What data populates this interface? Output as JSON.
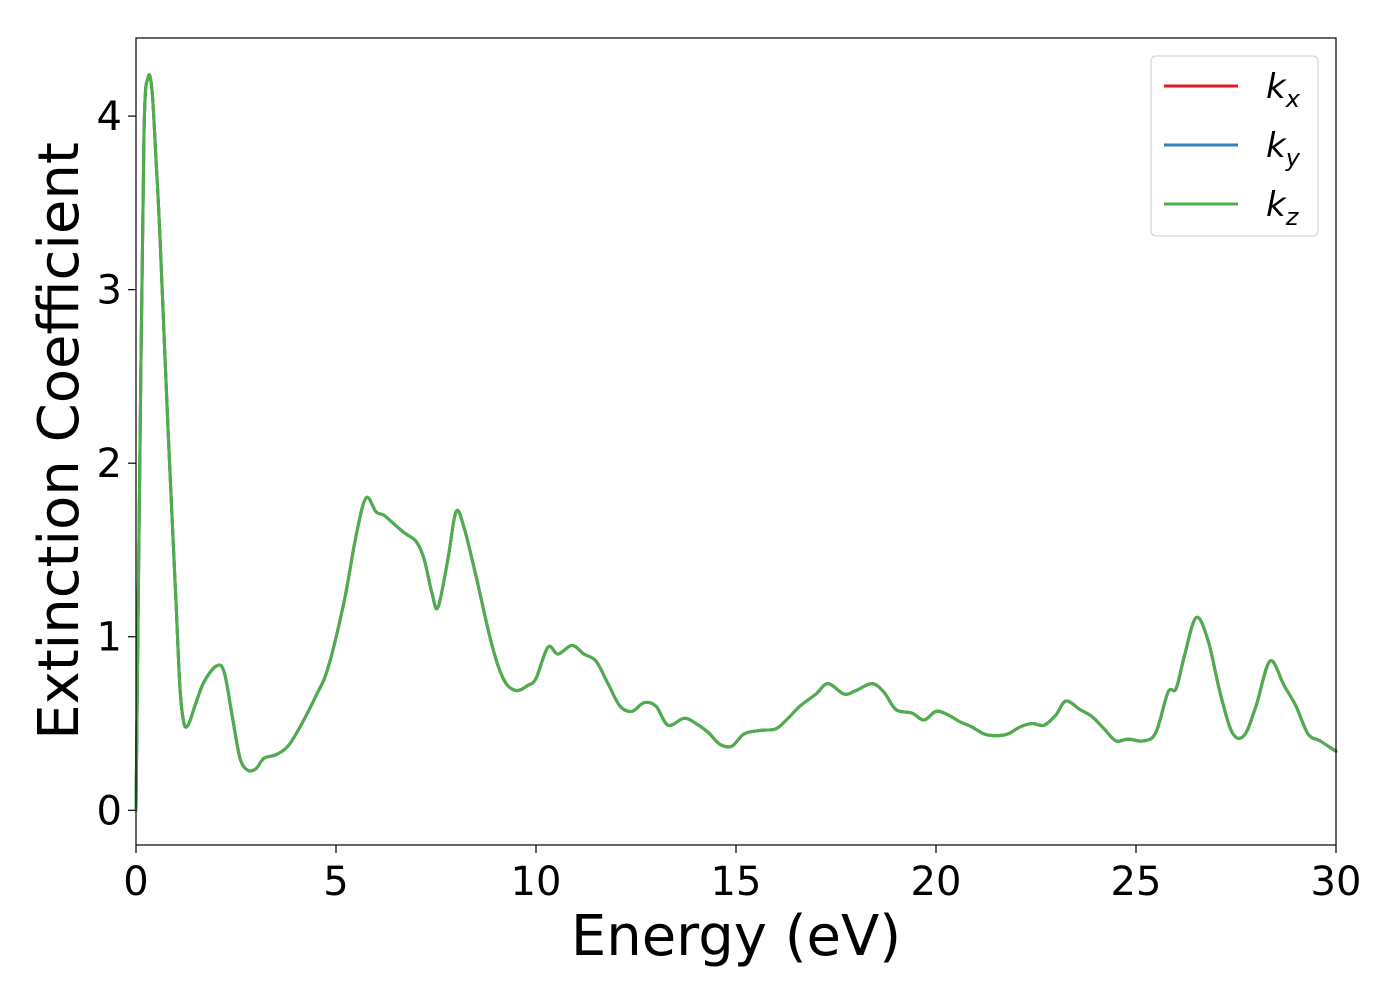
{
  "chart_data": {
    "type": "line",
    "xlabel": "Energy (eV)",
    "ylabel": "Extinction Coefficient",
    "xlim": [
      0,
      30
    ],
    "ylim": [
      -0.2,
      4.45
    ],
    "xticks": [
      0,
      5,
      10,
      15,
      20,
      25,
      30
    ],
    "yticks": [
      0,
      1,
      2,
      3,
      4
    ],
    "grid": false,
    "legend_position": "top-right",
    "colors": {
      "kx": "#e41a1c",
      "ky": "#377eb8",
      "kz": "#4daf4a"
    },
    "series_x": [
      0,
      0.1,
      0.2,
      0.3,
      0.4,
      0.5,
      0.6,
      0.8,
      1.0,
      1.1,
      1.2,
      1.3,
      1.4,
      1.5,
      1.7,
      2.0,
      2.2,
      2.4,
      2.6,
      2.8,
      3.0,
      3.2,
      3.5,
      3.8,
      4.1,
      4.5,
      4.8,
      5.2,
      5.5,
      5.75,
      6.0,
      6.2,
      6.4,
      6.7,
      7.0,
      7.2,
      7.4,
      7.55,
      7.8,
      8.0,
      8.2,
      8.5,
      8.9,
      9.2,
      9.5,
      9.8,
      10.0,
      10.3,
      10.55,
      10.9,
      11.2,
      11.5,
      11.8,
      12.1,
      12.4,
      12.7,
      13.0,
      13.3,
      13.7,
      14.0,
      14.3,
      14.6,
      14.9,
      15.2,
      15.6,
      16.0,
      16.3,
      16.6,
      17.0,
      17.3,
      17.7,
      18.0,
      18.4,
      18.7,
      19.0,
      19.4,
      19.7,
      20.0,
      20.3,
      20.6,
      20.9,
      21.2,
      21.5,
      21.8,
      22.1,
      22.4,
      22.7,
      23.0,
      23.25,
      23.6,
      23.9,
      24.2,
      24.5,
      24.8,
      25.2,
      25.5,
      25.8,
      26.0,
      26.2,
      26.5,
      26.8,
      27.1,
      27.4,
      27.7,
      28.0,
      28.35,
      28.7,
      29.0,
      29.3,
      29.6,
      30.0
    ],
    "series": [
      {
        "name": "k_x",
        "label_main": "k",
        "label_sub": "x",
        "values": [
          0,
          2.1,
          3.9,
          4.22,
          4.15,
          3.75,
          3.3,
          2.2,
          1.2,
          0.7,
          0.5,
          0.49,
          0.55,
          0.62,
          0.74,
          0.83,
          0.8,
          0.55,
          0.3,
          0.23,
          0.24,
          0.3,
          0.32,
          0.37,
          0.48,
          0.66,
          0.82,
          1.2,
          1.58,
          1.8,
          1.72,
          1.7,
          1.66,
          1.6,
          1.55,
          1.45,
          1.25,
          1.17,
          1.45,
          1.72,
          1.63,
          1.35,
          0.95,
          0.75,
          0.69,
          0.72,
          0.76,
          0.94,
          0.9,
          0.95,
          0.9,
          0.86,
          0.73,
          0.6,
          0.57,
          0.62,
          0.6,
          0.49,
          0.53,
          0.5,
          0.45,
          0.38,
          0.37,
          0.44,
          0.46,
          0.47,
          0.53,
          0.6,
          0.67,
          0.73,
          0.67,
          0.69,
          0.73,
          0.68,
          0.58,
          0.56,
          0.52,
          0.57,
          0.55,
          0.51,
          0.48,
          0.44,
          0.43,
          0.44,
          0.48,
          0.5,
          0.49,
          0.55,
          0.63,
          0.58,
          0.54,
          0.47,
          0.4,
          0.41,
          0.4,
          0.45,
          0.68,
          0.7,
          0.88,
          1.11,
          0.98,
          0.68,
          0.45,
          0.43,
          0.6,
          0.86,
          0.72,
          0.6,
          0.44,
          0.4,
          0.34
        ]
      },
      {
        "name": "k_y",
        "label_main": "k",
        "label_sub": "y",
        "values": [
          0,
          2.1,
          3.9,
          4.22,
          4.15,
          3.75,
          3.3,
          2.2,
          1.2,
          0.7,
          0.5,
          0.49,
          0.55,
          0.62,
          0.74,
          0.83,
          0.8,
          0.55,
          0.3,
          0.23,
          0.24,
          0.3,
          0.32,
          0.37,
          0.48,
          0.66,
          0.82,
          1.2,
          1.58,
          1.8,
          1.72,
          1.7,
          1.66,
          1.6,
          1.55,
          1.45,
          1.25,
          1.17,
          1.45,
          1.72,
          1.63,
          1.35,
          0.95,
          0.75,
          0.69,
          0.72,
          0.76,
          0.94,
          0.9,
          0.95,
          0.9,
          0.86,
          0.73,
          0.6,
          0.57,
          0.62,
          0.6,
          0.49,
          0.53,
          0.5,
          0.45,
          0.38,
          0.37,
          0.44,
          0.46,
          0.47,
          0.53,
          0.6,
          0.67,
          0.73,
          0.67,
          0.69,
          0.73,
          0.68,
          0.58,
          0.56,
          0.52,
          0.57,
          0.55,
          0.51,
          0.48,
          0.44,
          0.43,
          0.44,
          0.48,
          0.5,
          0.49,
          0.55,
          0.63,
          0.58,
          0.54,
          0.47,
          0.4,
          0.41,
          0.4,
          0.45,
          0.68,
          0.7,
          0.88,
          1.11,
          0.98,
          0.68,
          0.45,
          0.43,
          0.6,
          0.86,
          0.72,
          0.6,
          0.44,
          0.4,
          0.34
        ]
      },
      {
        "name": "k_z",
        "label_main": "k",
        "label_sub": "z",
        "values": [
          0,
          2.1,
          3.9,
          4.22,
          4.15,
          3.75,
          3.3,
          2.2,
          1.2,
          0.7,
          0.5,
          0.49,
          0.55,
          0.62,
          0.74,
          0.83,
          0.8,
          0.55,
          0.3,
          0.23,
          0.24,
          0.3,
          0.32,
          0.37,
          0.48,
          0.66,
          0.82,
          1.2,
          1.58,
          1.8,
          1.72,
          1.7,
          1.66,
          1.6,
          1.55,
          1.45,
          1.25,
          1.17,
          1.45,
          1.72,
          1.63,
          1.35,
          0.95,
          0.75,
          0.69,
          0.72,
          0.76,
          0.94,
          0.9,
          0.95,
          0.9,
          0.86,
          0.73,
          0.6,
          0.57,
          0.62,
          0.6,
          0.49,
          0.53,
          0.5,
          0.45,
          0.38,
          0.37,
          0.44,
          0.46,
          0.47,
          0.53,
          0.6,
          0.67,
          0.73,
          0.67,
          0.69,
          0.73,
          0.68,
          0.58,
          0.56,
          0.52,
          0.57,
          0.55,
          0.51,
          0.48,
          0.44,
          0.43,
          0.44,
          0.48,
          0.5,
          0.49,
          0.55,
          0.63,
          0.58,
          0.54,
          0.47,
          0.4,
          0.41,
          0.4,
          0.45,
          0.68,
          0.7,
          0.88,
          1.11,
          0.98,
          0.68,
          0.45,
          0.43,
          0.6,
          0.86,
          0.72,
          0.6,
          0.44,
          0.4,
          0.34
        ]
      }
    ]
  }
}
